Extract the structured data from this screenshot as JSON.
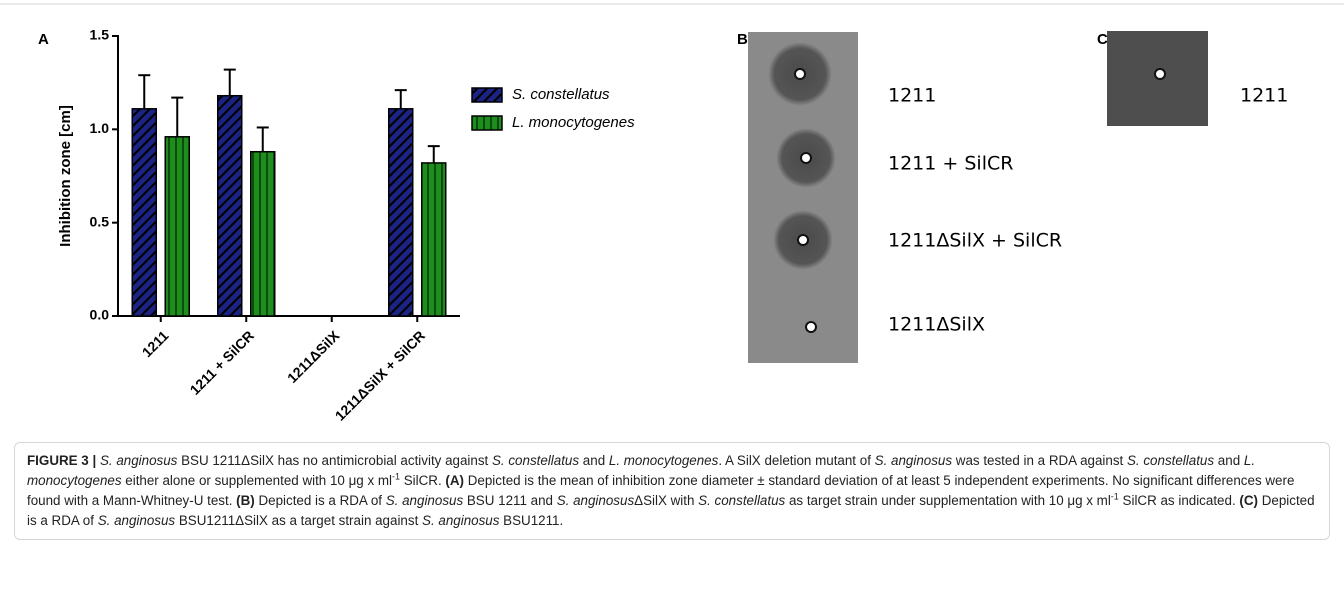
{
  "chart_data": {
    "type": "bar",
    "panel_label": "A",
    "y_label": "Inhibition zone [cm]",
    "categories": [
      "1211",
      "1211 + SilCR",
      "1211ΔSilX",
      "1211ΔSilX + SilCR"
    ],
    "series": [
      {
        "name": "S. constellatus",
        "color": "#1b2384",
        "hatch": "diagonal",
        "values": [
          1.11,
          1.18,
          0,
          1.11
        ],
        "errors": [
          0.18,
          0.14,
          0,
          0.1
        ]
      },
      {
        "name": "L. monocytogenes",
        "color": "#1e8c1e",
        "hatch": "vertical",
        "values": [
          0.96,
          0.88,
          0,
          0.82
        ],
        "errors": [
          0.21,
          0.13,
          0,
          0.09
        ]
      }
    ],
    "ylim": [
      0,
      1.5
    ],
    "yticks": [
      {
        "value": 0,
        "label": "0.0"
      },
      0.5,
      {
        "value": 1,
        "label": "1.0"
      },
      1.5
    ],
    "legend": "right"
  },
  "panel_b": {
    "label": "B",
    "lanes": [
      "1211",
      "1211 + SilCR",
      "1211ΔSilX + SilCR",
      "1211ΔSilX"
    ]
  },
  "panel_c": {
    "label": "C",
    "lanes": [
      "1211"
    ]
  },
  "caption": {
    "segments": [
      "FIGURE 3 | ",
      "S. anginosus",
      " BSU 1211ΔSilX has no antimicrobial activity against ",
      "S. constellatus",
      " and ",
      "L. monocytogenes",
      ". A SilX deletion mutant of ",
      "S. anginosus",
      " was tested in a RDA against ",
      "S. constellatus",
      " and ",
      "L. monocytogenes",
      " either alone or supplemented with 10 μg x ml",
      "-1",
      " SilCR. ",
      "(A)",
      " Depicted is the mean of inhibition zone diameter ± standard deviation of at least 5 independent experiments. No significant differences were found with a Mann-Whitney-U test. ",
      "(B)",
      " Depicted is a RDA of ",
      "S. anginosus",
      " BSU 1211 and ",
      "S. anginosus",
      "ΔSilX with ",
      "S. constellatus",
      " as target strain under supplementation with 10 μg x ml",
      "-1",
      " SilCR as indicated. ",
      "(C)",
      " Depicted is a RDA of ",
      "S. anginosus",
      " BSU1211ΔSilX as a target strain against ",
      "S. anginosus",
      " BSU1211."
    ]
  }
}
